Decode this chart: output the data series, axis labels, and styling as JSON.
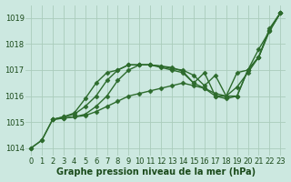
{
  "background_color": "#cce8e0",
  "grid_color": "#aaccbb",
  "line_color": "#2d6b2d",
  "marker": "D",
  "markersize": 2.5,
  "linewidth": 1.0,
  "xlabel": "Graphe pression niveau de la mer (hPa)",
  "xlabel_fontsize": 7,
  "xlabel_color": "#1a4a1a",
  "tick_fontsize": 6,
  "tick_color": "#1a4a1a",
  "xlim": [
    -0.5,
    23.5
  ],
  "ylim": [
    1013.7,
    1019.5
  ],
  "yticks": [
    1014,
    1015,
    1016,
    1017,
    1018,
    1019
  ],
  "xticks": [
    0,
    1,
    2,
    3,
    4,
    5,
    6,
    7,
    8,
    9,
    10,
    11,
    12,
    13,
    14,
    15,
    16,
    17,
    18,
    19,
    20,
    21,
    22,
    23
  ],
  "series": [
    {
      "start_x": 0,
      "values": [
        1014.0,
        1014.3,
        1015.1,
        1015.15,
        1015.2,
        1015.25,
        1015.4,
        1015.6,
        1015.8,
        1016.0,
        1016.1,
        1016.2,
        1016.3,
        1016.4,
        1016.5,
        1016.4,
        1016.3,
        1016.1,
        1016.0,
        1016.35,
        1016.9,
        1017.5,
        1018.55,
        1019.2
      ]
    },
    {
      "start_x": 2,
      "values": [
        1015.1,
        1015.2,
        1015.3,
        1015.6,
        1016.0,
        1016.6,
        1017.0,
        1017.2,
        1017.2,
        1017.2,
        1017.1,
        1017.0,
        1016.9,
        1016.5,
        1016.9,
        1016.0,
        1015.9,
        1016.0,
        1017.0,
        1017.5,
        1018.6,
        1019.2
      ]
    },
    {
      "start_x": 2,
      "values": [
        1015.1,
        1015.2,
        1015.35,
        1015.9,
        1016.5,
        1016.9,
        1017.0,
        1017.2,
        1017.2,
        1017.2,
        1017.15,
        1017.1,
        1016.95,
        1016.5,
        1016.3,
        1016.0,
        1016.0,
        1016.9,
        1017.0,
        1017.8,
        1018.5,
        1019.2
      ]
    },
    {
      "start_x": 0,
      "values": [
        1014.0,
        1014.3,
        1015.1,
        1015.15,
        1015.2,
        1015.3,
        1015.6,
        1016.0,
        1016.6,
        1017.0,
        1017.2,
        1017.2,
        1017.15,
        1017.05,
        1017.0,
        1016.8,
        1016.4,
        1016.8,
        1016.0,
        1016.0,
        1017.0,
        1017.5,
        1018.5,
        1019.2
      ]
    }
  ]
}
